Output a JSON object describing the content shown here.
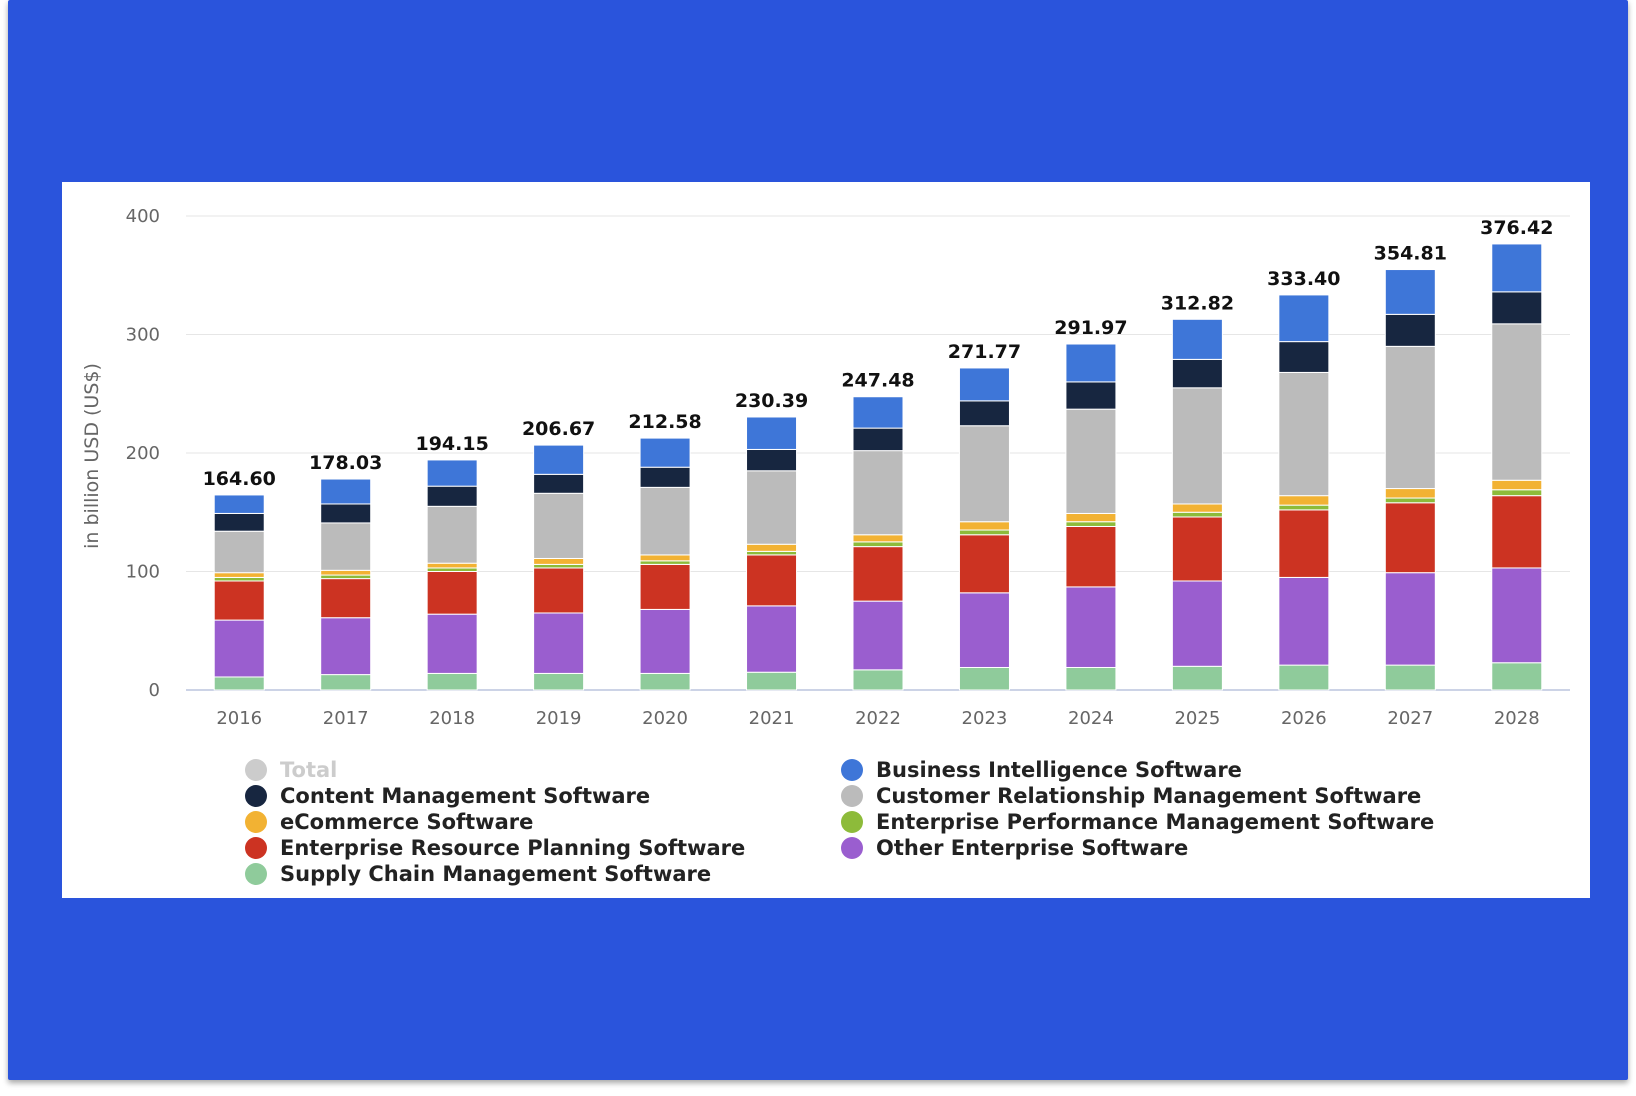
{
  "chart_data": {
    "type": "bar",
    "stacked": true,
    "ylabel": "in billion USD (US$)",
    "ylim": [
      0,
      400
    ],
    "yticks": [
      0,
      100,
      200,
      300,
      400
    ],
    "grid": true,
    "legend_position": "bottom",
    "categories": [
      "2016",
      "2017",
      "2018",
      "2019",
      "2020",
      "2021",
      "2022",
      "2023",
      "2024",
      "2025",
      "2026",
      "2027",
      "2028"
    ],
    "totals": [
      164.6,
      178.03,
      194.15,
      206.67,
      212.58,
      230.39,
      247.48,
      271.77,
      291.97,
      312.82,
      333.4,
      354.81,
      376.42
    ],
    "totals_labels": [
      "164.60",
      "178.03",
      "194.15",
      "206.67",
      "212.58",
      "230.39",
      "247.48",
      "271.77",
      "291.97",
      "312.82",
      "333.40",
      "354.81",
      "376.42"
    ],
    "series": [
      {
        "name": "Supply Chain Management Software",
        "color": "#8fcb9b",
        "values": [
          11,
          13,
          14,
          14,
          14,
          15,
          17,
          19,
          19,
          20,
          21,
          21,
          23
        ]
      },
      {
        "name": "Other Enterprise Software",
        "color": "#9a5ecf",
        "values": [
          48,
          48,
          50,
          51,
          54,
          56,
          58,
          63,
          68,
          72,
          74,
          78,
          80
        ]
      },
      {
        "name": "Enterprise Resource Planning Software",
        "color": "#cc3322",
        "values": [
          33,
          33,
          36,
          38,
          38,
          43,
          46,
          49,
          51,
          54,
          57,
          59,
          61
        ]
      },
      {
        "name": "Enterprise Performance Management Software",
        "color": "#8dbb3a",
        "values": [
          3,
          3,
          3,
          3,
          3,
          3,
          4,
          4,
          4,
          4,
          4,
          4,
          5
        ]
      },
      {
        "name": "eCommerce Software",
        "color": "#f2b233",
        "values": [
          4,
          4,
          4,
          5,
          5,
          6,
          6,
          7,
          7,
          7,
          8,
          8,
          8
        ]
      },
      {
        "name": "Customer Relationship Management Software",
        "color": "#bbbbbb",
        "values": [
          35,
          40,
          48,
          55,
          57,
          62,
          71,
          81,
          88,
          98,
          104,
          120,
          132
        ]
      },
      {
        "name": "Content Management Software",
        "color": "#172640",
        "values": [
          15,
          16,
          17,
          16,
          17,
          18,
          19,
          21,
          23,
          24,
          26,
          27,
          27
        ]
      },
      {
        "name": "Business Intelligence Software",
        "color": "#3e76d8",
        "values": [
          15.6,
          21.03,
          22.15,
          24.67,
          24.58,
          27.39,
          26.48,
          27.77,
          31.97,
          33.82,
          39.4,
          37.81,
          40.42
        ]
      }
    ],
    "legend": [
      {
        "label": "Total",
        "color": "#cccccc",
        "hidden": true
      },
      {
        "label": "Business Intelligence Software",
        "color": "#3e76d8"
      },
      {
        "label": "Content Management Software",
        "color": "#172640"
      },
      {
        "label": "Customer Relationship Management Software",
        "color": "#bbbbbb"
      },
      {
        "label": "eCommerce Software",
        "color": "#f2b233"
      },
      {
        "label": "Enterprise Performance Management Software",
        "color": "#8dbb3a"
      },
      {
        "label": "Enterprise Resource Planning Software",
        "color": "#cc3322"
      },
      {
        "label": "Other Enterprise Software",
        "color": "#9a5ecf"
      },
      {
        "label": "Supply Chain Management Software",
        "color": "#8fcb9b"
      }
    ]
  }
}
